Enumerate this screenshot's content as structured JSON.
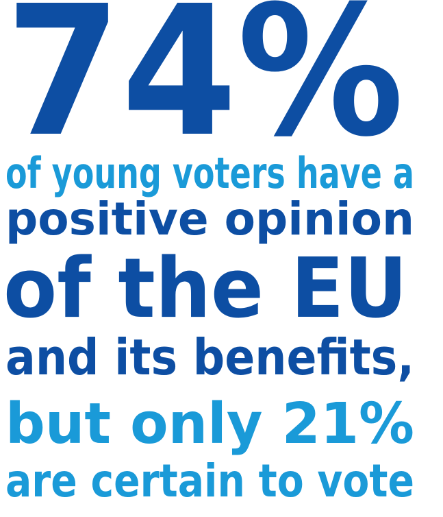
{
  "headline": "74%",
  "lines": [
    "of young voters have a",
    "positive opinion",
    "of the EU",
    "and its benefits,",
    "but only 21%",
    "are certain to vote"
  ]
}
